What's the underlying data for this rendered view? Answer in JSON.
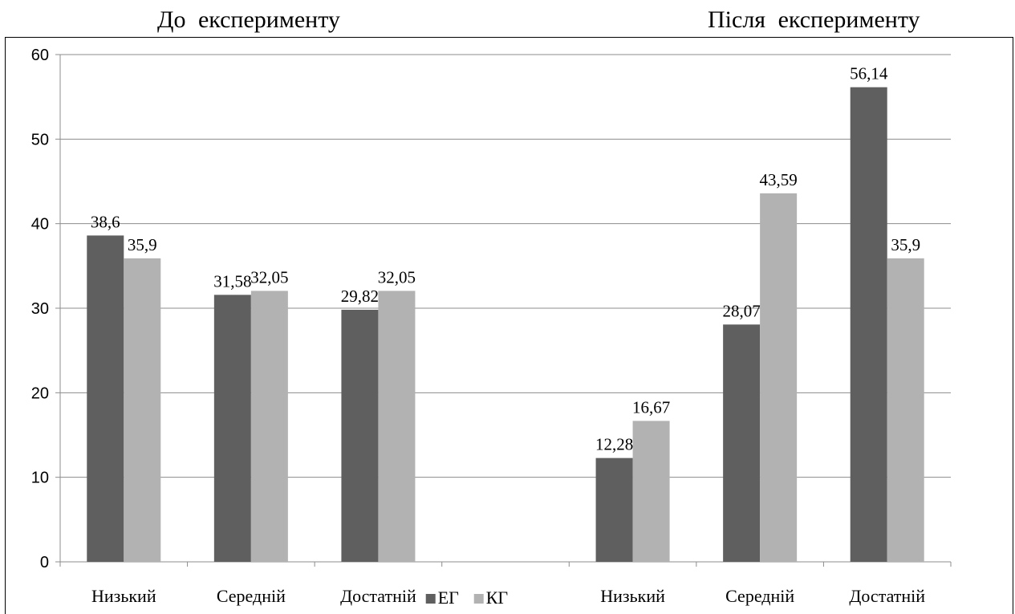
{
  "group_titles": {
    "before": "До експерименту",
    "after": "Після експерименту"
  },
  "chart_data": {
    "type": "bar",
    "title": "",
    "xlabel": "",
    "ylabel": "",
    "ylim": [
      0,
      60
    ],
    "yticks": [
      0,
      10,
      20,
      30,
      40,
      50,
      60
    ],
    "grid": true,
    "legend_position": "bottom-center",
    "colors": {
      "eg": "#5f5f5f",
      "kg": "#b2b2b2",
      "grid": "#8c8c8c",
      "axis": "#8c8c8c"
    },
    "categories": [
      "Низький",
      "Середній",
      "Достатній",
      "",
      "Низький",
      "Середній",
      "Достатній"
    ],
    "series": [
      {
        "name": "ЕГ",
        "values": [
          38.6,
          31.58,
          29.82,
          null,
          12.28,
          28.07,
          56.14
        ],
        "labels": [
          "38,6",
          "31,58",
          "29,82",
          "",
          "12,28",
          "28,07",
          "56,14"
        ]
      },
      {
        "name": "КГ",
        "values": [
          35.9,
          32.05,
          32.05,
          null,
          16.67,
          43.59,
          35.9
        ],
        "labels": [
          "35,9",
          "32,05",
          "32,05",
          "",
          "16,67",
          "43,59",
          "35,9"
        ]
      }
    ]
  }
}
